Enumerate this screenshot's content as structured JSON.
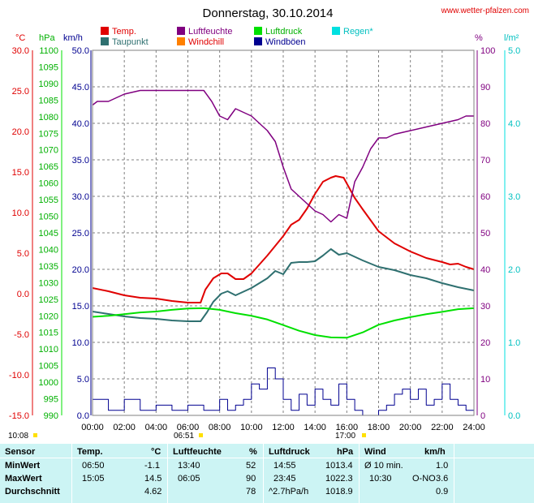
{
  "site": "www.wetter-pfalzen.com",
  "colors": {
    "temp": "#e00000",
    "dew": "#2f7070",
    "humidity": "#800080",
    "pressure": "#00e000",
    "wind": "#000090",
    "rain": "#00e0e0",
    "windchill": "#ff8000",
    "gusts": "#000090",
    "grid": "#808080",
    "table_bg": "#ccf4f4"
  },
  "chart_data": {
    "type": "line",
    "title": "Donnerstag, 30.10.2014",
    "x_ticks": [
      "00:00",
      "02:00",
      "04:00",
      "06:00",
      "08:00",
      "10:00",
      "12:00",
      "14:00",
      "16:00",
      "18:00",
      "20:00",
      "22:00",
      "24:00"
    ],
    "axes": {
      "temp": {
        "label": "°C",
        "ticks": [
          "30.0",
          "25.0",
          "20.0",
          "15.0",
          "10.0",
          "5.0",
          "0.0",
          "-5.0",
          "-10.0",
          "-15.0"
        ],
        "range": [
          -15,
          30
        ]
      },
      "pressure": {
        "label": "hPa",
        "ticks": [
          "1100",
          "1095",
          "1090",
          "1085",
          "1080",
          "1075",
          "1070",
          "1065",
          "1060",
          "1055",
          "1050",
          "1045",
          "1040",
          "1035",
          "1030",
          "1025",
          "1020",
          "1015",
          "1010",
          "1005",
          "1000",
          "995",
          "990"
        ],
        "range": [
          990,
          1100
        ]
      },
      "wind": {
        "label": "km/h",
        "ticks": [
          "50.0",
          "45.0",
          "40.0",
          "35.0",
          "30.0",
          "25.0",
          "20.0",
          "15.0",
          "10.0",
          "5.0",
          "0.0"
        ],
        "range": [
          0,
          50
        ]
      },
      "humidity": {
        "label": "%",
        "ticks": [
          "100",
          "90",
          "80",
          "70",
          "60",
          "50",
          "40",
          "30",
          "20",
          "10",
          "0"
        ],
        "range": [
          0,
          100
        ]
      },
      "rain": {
        "label": "l/m²",
        "ticks": [
          "5.0",
          "4.0",
          "3.0",
          "2.0",
          "1.0",
          "0.0"
        ],
        "range": [
          0,
          5
        ]
      }
    },
    "legend": [
      "Temp.",
      "Luftfeuchte",
      "Luftdruck",
      "Regen*",
      "Taupunkt",
      "Windchill",
      "Windböen"
    ],
    "series": [
      {
        "name": "Temp.",
        "unit": "°C",
        "x": [
          0,
          1,
          2,
          3,
          4,
          5,
          6,
          6.8,
          7.1,
          7.6,
          8.1,
          8.5,
          9,
          9.5,
          10,
          11,
          12,
          12.5,
          13,
          13.5,
          14,
          14.5,
          15,
          15.3,
          15.8,
          16.5,
          17,
          18,
          19,
          20,
          21,
          22,
          22.5,
          23,
          23.5,
          24
        ],
        "y": [
          0.7,
          0.3,
          -0.2,
          -0.5,
          -0.6,
          -0.9,
          -1.1,
          -1.1,
          0.5,
          1.9,
          2.5,
          2.5,
          1.8,
          1.8,
          2.5,
          4.7,
          7.1,
          8.5,
          9.1,
          10.5,
          12.3,
          13.8,
          14.3,
          14.5,
          14.3,
          11.8,
          10.4,
          7.7,
          6.2,
          5.2,
          4.4,
          3.9,
          3.6,
          3.7,
          3.3,
          3.0
        ]
      },
      {
        "name": "Taupunkt",
        "unit": "°C",
        "x": [
          0,
          1,
          2,
          3,
          4,
          5,
          6,
          6.8,
          7.2,
          7.6,
          8.1,
          8.5,
          9,
          10,
          11,
          11.5,
          12,
          12.5,
          13,
          13.5,
          14,
          14.5,
          15,
          15.5,
          16,
          17,
          18,
          19,
          20,
          21,
          22,
          23,
          24
        ],
        "y": [
          -2.2,
          -2.5,
          -2.8,
          -3.0,
          -3.1,
          -3.3,
          -3.4,
          -3.4,
          -2.3,
          -1.0,
          0.0,
          0.3,
          -0.2,
          0.7,
          1.9,
          2.8,
          2.4,
          3.8,
          3.9,
          3.9,
          4.0,
          4.7,
          5.5,
          4.8,
          5.0,
          4.1,
          3.3,
          2.9,
          2.3,
          1.9,
          1.3,
          0.8,
          0.4
        ]
      },
      {
        "name": "Luftfeuchte",
        "unit": "%",
        "x": [
          0,
          0.3,
          1,
          2,
          3,
          4,
          5,
          6,
          7,
          7.5,
          8,
          8.5,
          9,
          10,
          11,
          11.5,
          12,
          12.5,
          13,
          13.5,
          14,
          14.5,
          15,
          15.5,
          16,
          16.5,
          17,
          17.5,
          18,
          18.5,
          19,
          20,
          21,
          22,
          23,
          23.5,
          24
        ],
        "y": [
          85,
          86,
          86,
          88,
          89,
          89,
          89,
          89,
          89,
          86,
          82,
          81,
          84,
          82,
          78,
          75,
          68,
          62,
          60,
          58,
          56,
          55,
          53,
          55,
          54,
          64,
          68,
          73,
          76,
          76,
          77,
          78,
          79,
          80,
          81,
          82,
          82
        ]
      },
      {
        "name": "Luftdruck",
        "unit": "hPa",
        "x": [
          0,
          1,
          2,
          3,
          4,
          5,
          6,
          7,
          8,
          9,
          10,
          11,
          12,
          13,
          14,
          15,
          16,
          17,
          18,
          19,
          20,
          21,
          22,
          23,
          24
        ],
        "y": [
          1019.7,
          1020.0,
          1020.5,
          1021.0,
          1021.3,
          1021.8,
          1022.2,
          1022.3,
          1021.8,
          1020.8,
          1020.0,
          1018.9,
          1017.2,
          1015.5,
          1014.2,
          1013.5,
          1013.4,
          1015.0,
          1017.3,
          1018.6,
          1019.6,
          1020.5,
          1021.2,
          1022.0,
          1022.3
        ]
      },
      {
        "name": "Windböen",
        "unit": "km/h",
        "x": [
          0,
          1,
          2,
          3,
          4,
          5,
          6,
          7,
          8,
          8.5,
          9,
          9.5,
          10,
          10.5,
          11,
          11.5,
          12,
          12.5,
          13,
          13.5,
          14,
          14.5,
          15,
          15.5,
          16,
          16.5,
          17,
          18,
          18.5,
          19,
          19.5,
          20,
          20.5,
          21,
          21.5,
          22,
          22.5,
          23,
          23.5,
          24
        ],
        "y": [
          2.2,
          0.7,
          2.2,
          0.7,
          1.4,
          0.7,
          1.4,
          0.7,
          2.2,
          0.7,
          1.4,
          2.2,
          4.3,
          3.6,
          6.5,
          5.0,
          2.2,
          0.7,
          2.9,
          1.4,
          3.6,
          2.2,
          1.4,
          4.3,
          2.2,
          0.7,
          0.0,
          0.7,
          1.4,
          2.9,
          3.6,
          2.2,
          3.6,
          1.4,
          2.2,
          4.3,
          2.2,
          1.4,
          0.7,
          2.2
        ]
      }
    ]
  },
  "markers": {
    "sunrise": "06:51",
    "sunset": "17:00",
    "daylength": "10:08"
  },
  "table": {
    "header": {
      "sensor": "Sensor",
      "temp": "Temp.",
      "temp_unit": "°C",
      "hum": "Luftfeuchte",
      "hum_unit": "%",
      "press": "Luftdruck",
      "press_unit": "hPa",
      "wind": "Wind",
      "wind_unit": "km/h"
    },
    "min": {
      "label": "MinWert",
      "temp_time": "06:50",
      "temp": "-1.1",
      "hum_time": "13:40",
      "hum": "52",
      "press_time": "14:55",
      "press": "1013.4",
      "wind_time": "Ø 10 min.",
      "wind": "1.0"
    },
    "max": {
      "label": "MaxWert",
      "temp_time": "15:05",
      "temp": "14.5",
      "hum_time": "06:05",
      "hum": "90",
      "press_time": "23:45",
      "press": "1022.3",
      "wind_time": "10:30",
      "wind_dir": "O-NO",
      "wind": "3.6"
    },
    "avg": {
      "label": "Durchschnitt",
      "temp": "4.62",
      "hum": "78",
      "press_trend": "^2.7hPa/h",
      "press": "1018.9",
      "wind": "0.9"
    }
  }
}
